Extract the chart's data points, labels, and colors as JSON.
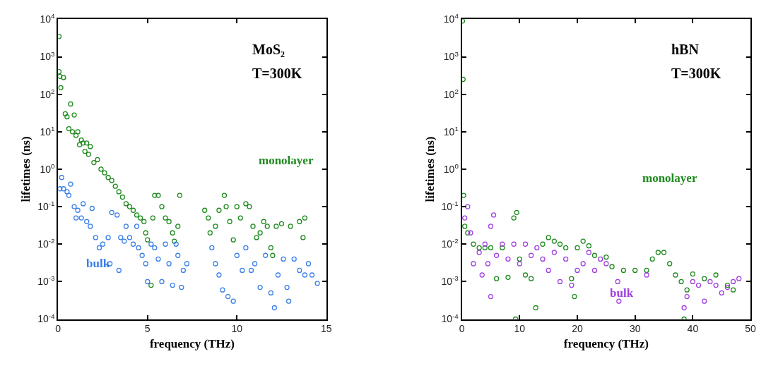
{
  "chart_data": [
    {
      "type": "scatter",
      "xlabel": "frequency (THz)",
      "ylabel": "lifetimes (ns)",
      "log": "y",
      "grid": false,
      "legend": false,
      "marker": "circle",
      "xlim": [
        0,
        15
      ],
      "xticks": [
        0,
        5,
        10,
        15
      ],
      "ylim": [
        0.0001,
        10000
      ],
      "yticks": [
        {
          "value": 0.0001,
          "label": "10$^{-4}$"
        },
        {
          "value": 0.001,
          "label": "10$^{-3}$"
        },
        {
          "value": 0.01,
          "label": "10$^{-2}$"
        },
        {
          "value": 0.1,
          "label": "10$^{-1}$"
        },
        {
          "value": 1,
          "label": "10$^{0}$"
        },
        {
          "value": 10,
          "label": "10$^{1}$"
        },
        {
          "value": 100,
          "label": "10$^{2}$"
        },
        {
          "value": 1000,
          "label": "10$^{3}$"
        },
        {
          "value": 10000,
          "label": "10$^{4}$"
        }
      ],
      "annotations": [
        "MoS₂",
        "T=300K"
      ],
      "series": [
        {
          "name": "monolayer",
          "color": "#1e8a1e",
          "x": [
            0.05,
            0.05,
            0.1,
            0.15,
            0.3,
            0.4,
            0.5,
            0.6,
            0.7,
            0.8,
            0.9,
            1.0,
            1.1,
            1.2,
            1.3,
            1.4,
            1.5,
            1.6,
            1.7,
            1.8,
            2.0,
            2.2,
            2.4,
            2.6,
            2.8,
            3.0,
            3.2,
            3.4,
            3.6,
            3.8,
            4.0,
            4.2,
            4.4,
            4.6,
            4.8,
            4.9,
            5.0,
            5.2,
            5.3,
            5.4,
            5.6,
            5.8,
            6.0,
            6.2,
            6.4,
            6.5,
            6.7,
            6.8,
            8.2,
            8.4,
            8.5,
            8.8,
            9.0,
            9.3,
            9.4,
            9.6,
            9.8,
            10.0,
            10.2,
            10.5,
            10.7,
            10.9,
            11.1,
            11.3,
            11.5,
            11.7,
            11.9,
            12.0,
            12.2,
            12.5,
            13.0,
            13.5,
            13.8,
            13.7
          ],
          "values": [
            3500,
            400,
            300,
            150,
            280,
            30,
            25,
            12,
            55,
            10,
            28,
            8,
            10,
            4.5,
            6,
            5,
            3,
            5,
            2.5,
            4,
            1.5,
            1.8,
            1.0,
            0.8,
            0.6,
            0.5,
            0.35,
            0.25,
            0.18,
            0.12,
            0.1,
            0.08,
            0.06,
            0.05,
            0.04,
            0.02,
            0.013,
            0.0008,
            0.05,
            0.2,
            0.2,
            0.1,
            0.05,
            0.04,
            0.02,
            0.012,
            0.03,
            0.2,
            0.08,
            0.05,
            0.02,
            0.03,
            0.08,
            0.2,
            0.1,
            0.04,
            0.013,
            0.1,
            0.05,
            0.12,
            0.1,
            0.03,
            0.015,
            0.02,
            0.04,
            0.03,
            0.008,
            0.005,
            0.03,
            0.035,
            0.03,
            0.04,
            0.05,
            0.015
          ]
        },
        {
          "name": "bulk",
          "color": "#3a7fe8",
          "x": [
            0.1,
            0.2,
            0.3,
            0.5,
            0.6,
            0.7,
            0.9,
            1.0,
            1.1,
            1.3,
            1.4,
            1.6,
            1.8,
            1.9,
            2.1,
            2.3,
            2.5,
            2.9,
            2.8,
            3.0,
            3.3,
            3.4,
            3.5,
            3.7,
            3.8,
            4.0,
            4.2,
            4.4,
            4.5,
            4.7,
            4.9,
            5.0,
            5.2,
            5.4,
            5.6,
            5.8,
            6.0,
            6.2,
            6.4,
            6.6,
            6.7,
            6.9,
            7.0,
            7.2,
            8.6,
            8.8,
            9.0,
            9.2,
            9.5,
            9.8,
            10.0,
            10.3,
            10.5,
            10.8,
            11.0,
            11.3,
            11.6,
            11.9,
            12.1,
            12.3,
            12.6,
            12.8,
            12.9,
            13.2,
            13.5,
            13.8,
            14.0,
            14.2,
            14.5
          ],
          "values": [
            0.3,
            0.6,
            0.3,
            0.25,
            0.2,
            0.4,
            0.1,
            0.05,
            0.08,
            0.05,
            0.12,
            0.04,
            0.03,
            0.09,
            0.015,
            0.008,
            0.01,
            0.003,
            0.015,
            0.07,
            0.06,
            0.002,
            0.015,
            0.012,
            0.03,
            0.015,
            0.01,
            0.03,
            0.008,
            0.005,
            0.003,
            0.001,
            0.01,
            0.008,
            0.004,
            0.001,
            0.01,
            0.003,
            0.0008,
            0.01,
            0.005,
            0.0007,
            0.002,
            0.003,
            0.008,
            0.003,
            0.0015,
            0.0006,
            0.0004,
            0.0003,
            0.005,
            0.002,
            0.008,
            0.002,
            0.003,
            0.0007,
            0.005,
            0.0005,
            0.0002,
            0.0015,
            0.004,
            0.0007,
            0.0003,
            0.004,
            0.002,
            0.0015,
            0.003,
            0.0015,
            0.0009
          ]
        }
      ]
    },
    {
      "type": "scatter",
      "xlabel": "frequency (THz)",
      "ylabel": "lifetimes (ns)",
      "log": "y",
      "grid": false,
      "legend": false,
      "marker": "circle",
      "xlim": [
        0,
        50
      ],
      "xticks": [
        0,
        10,
        20,
        30,
        40,
        50
      ],
      "ylim": [
        0.0001,
        10000
      ],
      "yticks": [
        {
          "value": 0.0001,
          "label": "10$^{-4}$"
        },
        {
          "value": 0.001,
          "label": "10$^{-3}$"
        },
        {
          "value": 0.01,
          "label": "10$^{-2}$"
        },
        {
          "value": 0.1,
          "label": "10$^{-1}$"
        },
        {
          "value": 1,
          "label": "10$^{0}$"
        },
        {
          "value": 10,
          "label": "10$^{1}$"
        },
        {
          "value": 100,
          "label": "10$^{2}$"
        },
        {
          "value": 1000,
          "label": "10$^{3}$"
        },
        {
          "value": 10000,
          "label": "10$^{4}$"
        }
      ],
      "annotations": [
        "hBN",
        "T=300K"
      ],
      "series": [
        {
          "name": "monolayer",
          "color": "#1e8a1e",
          "x": [
            0.1,
            0.2,
            0.3,
            0.5,
            1,
            2,
            3,
            4,
            5,
            6,
            7,
            8,
            9,
            9.5,
            10,
            11,
            12,
            12.8,
            9.3,
            14,
            15,
            16,
            17,
            18,
            19,
            19.5,
            20,
            21,
            22,
            23,
            25,
            26,
            28,
            30,
            32,
            33,
            34,
            35,
            36,
            37,
            38,
            38.5,
            39,
            40,
            42,
            44,
            46,
            47
          ],
          "values": [
            9000,
            250,
            0.2,
            0.03,
            0.02,
            0.01,
            0.008,
            0.008,
            0.008,
            0.0012,
            0.008,
            0.0013,
            0.05,
            0.07,
            0.004,
            0.0015,
            0.0012,
            0.0002,
            0.0001,
            0.01,
            0.015,
            0.012,
            0.01,
            0.008,
            0.0012,
            0.0004,
            0.008,
            0.012,
            0.009,
            0.005,
            0.0045,
            0.0025,
            0.002,
            0.002,
            0.002,
            0.004,
            0.006,
            0.006,
            0.003,
            0.0015,
            0.001,
            0.0001,
            0.0006,
            0.0016,
            0.0012,
            0.0015,
            0.0008,
            0.0006
          ]
        },
        {
          "name": "bulk",
          "color": "#a040e0",
          "x": [
            0.5,
            1,
            1.5,
            2,
            3,
            3.5,
            4,
            4.5,
            5,
            5,
            5.5,
            6,
            7,
            8,
            9,
            10,
            11,
            12,
            13,
            14,
            15,
            16,
            17,
            18,
            19,
            20,
            21,
            22,
            23,
            24,
            25,
            27,
            27.2,
            32,
            38.5,
            39,
            40,
            41,
            42,
            43,
            44,
            45,
            46,
            47,
            48
          ],
          "values": [
            0.05,
            0.1,
            0.02,
            0.003,
            0.006,
            0.0015,
            0.01,
            0.003,
            0.03,
            0.0004,
            0.06,
            0.005,
            0.01,
            0.004,
            0.01,
            0.003,
            0.01,
            0.005,
            0.008,
            0.004,
            0.002,
            0.006,
            0.001,
            0.004,
            0.0008,
            0.002,
            0.003,
            0.006,
            0.002,
            0.004,
            0.003,
            0.001,
            0.0003,
            0.0015,
            0.0002,
            0.0004,
            0.001,
            0.0008,
            0.0003,
            0.001,
            0.0008,
            0.0005,
            0.0007,
            0.001,
            0.0012
          ]
        }
      ]
    }
  ]
}
